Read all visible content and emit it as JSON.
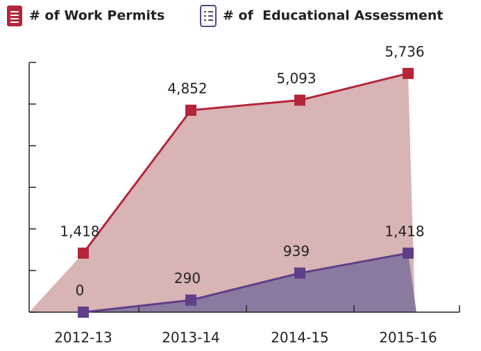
{
  "chart_data": {
    "type": "line",
    "categories": [
      "2012-13",
      "2013-14",
      "2014-15",
      "2015-16"
    ],
    "series": [
      {
        "name": "# of Work Permits",
        "color": "#b5253a",
        "fill": "#d9b4b4",
        "values": [
          1418,
          4852,
          5093,
          5736
        ]
      },
      {
        "name": "# of  Educational Assessment",
        "color": "#5e3f88",
        "fill": "#8b7aa0",
        "values": [
          0,
          290,
          939,
          1418
        ]
      }
    ],
    "ylim": [
      0,
      6000
    ],
    "yticks": [
      0,
      1000,
      2000,
      3000,
      4000,
      5000,
      6000
    ]
  }
}
